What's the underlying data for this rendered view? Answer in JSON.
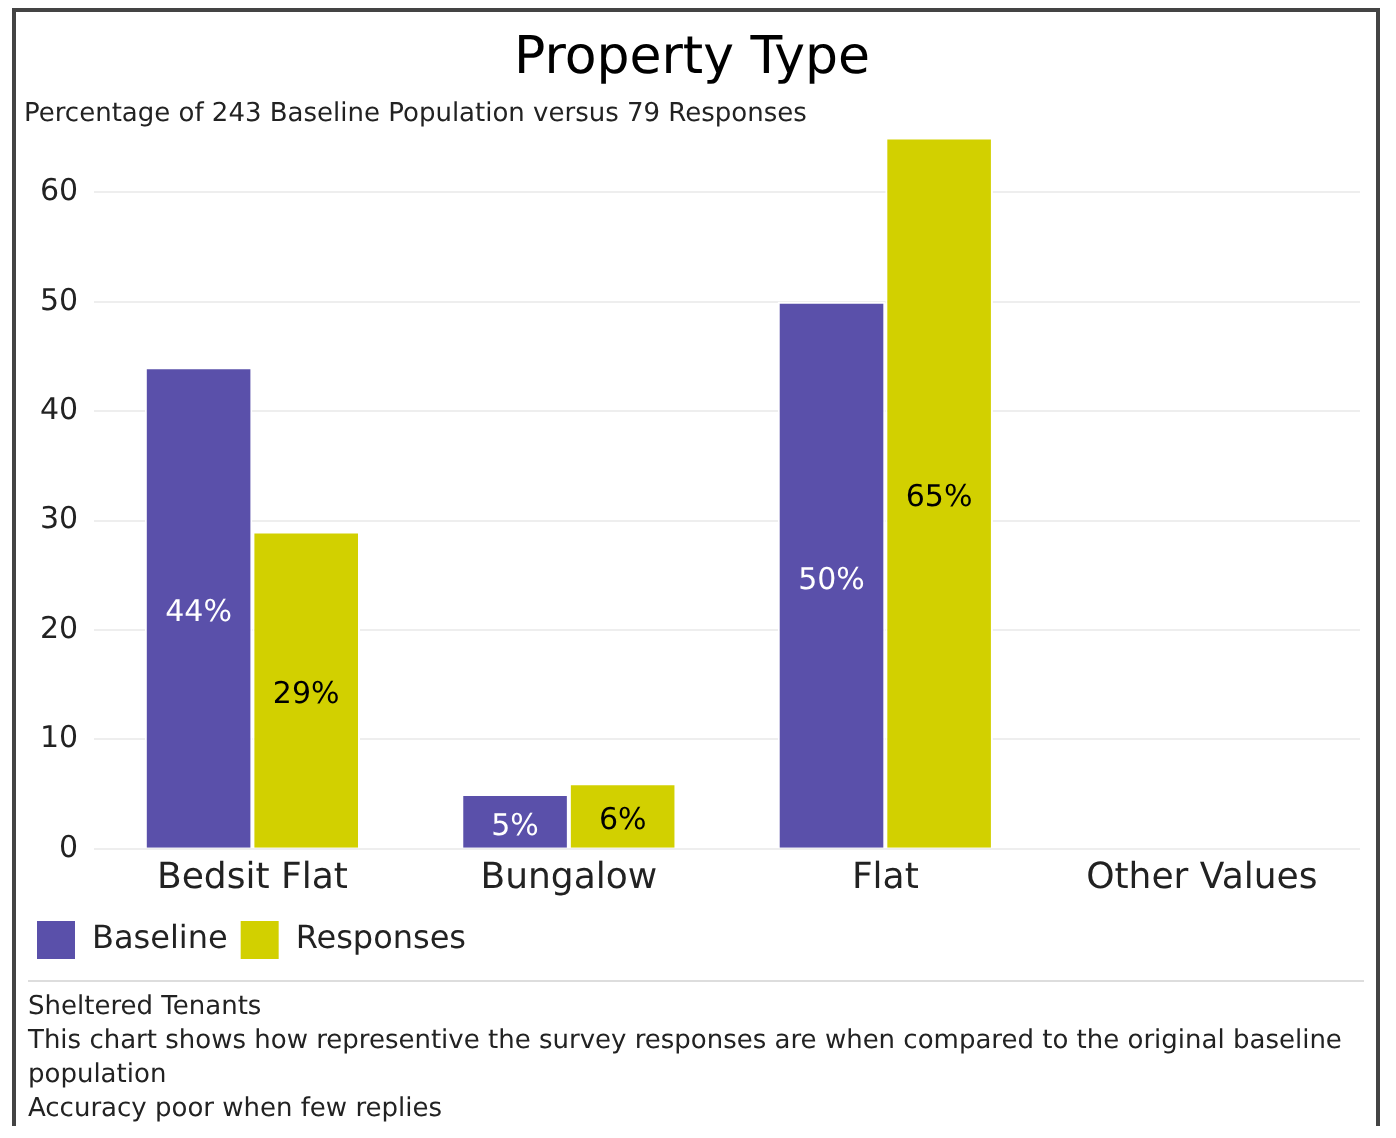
{
  "chart_data": {
    "type": "bar",
    "title": "Property Type",
    "subtitle": "Percentage of 243 Baseline Population versus 79 Responses",
    "categories": [
      "Bedsit Flat",
      "Bungalow",
      "Flat",
      "Other Values"
    ],
    "series": [
      {
        "name": "Baseline",
        "color": "#5a50aa",
        "values": [
          44,
          5,
          50,
          null
        ],
        "value_labels": [
          "44%",
          "5%",
          "50%",
          null
        ]
      },
      {
        "name": "Responses",
        "color": "#d2d000",
        "values": [
          29,
          6,
          65,
          null
        ],
        "value_labels": [
          "29%",
          "6%",
          "65%",
          null
        ]
      }
    ],
    "ylim": [
      0,
      65
    ],
    "yticks": [
      0,
      10,
      20,
      30,
      40,
      50,
      60
    ],
    "grid": "y",
    "legend": "bottom left",
    "annotations": [
      "Sheltered Tenants",
      "This chart shows how representive the survey responses are when compared to the original baseline population",
      "Accuracy poor when few replies"
    ]
  }
}
